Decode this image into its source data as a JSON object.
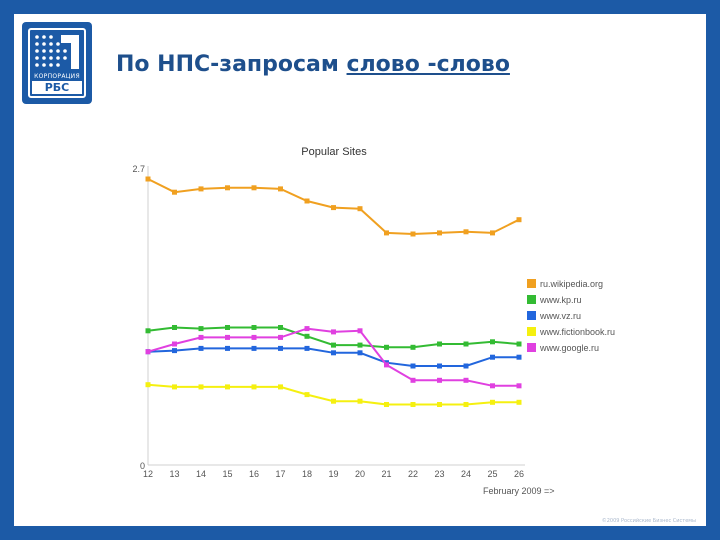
{
  "slide": {
    "title_prefix": "По НПС-запросам",
    "title_underlined": "слово -слово"
  },
  "logo": {
    "subtitle": "КОРПОРАЦИЯ",
    "brand": "РБС"
  },
  "footer": "©2009 Российские Бизнес Системы",
  "chart_data": {
    "type": "line",
    "title": "Popular Sites",
    "xlabel": "February 2009 =>",
    "ylabel": "",
    "ylim": [
      0,
      2.7
    ],
    "ytick_labels": [
      "0",
      "2.7"
    ],
    "x": [
      12,
      13,
      14,
      15,
      16,
      17,
      18,
      19,
      20,
      21,
      22,
      23,
      24,
      25,
      26
    ],
    "legend_position": "right",
    "series": [
      {
        "name": "ru.wikipedia.org",
        "color": "#f0a020",
        "values": [
          2.6,
          2.48,
          2.51,
          2.52,
          2.52,
          2.51,
          2.4,
          2.34,
          2.33,
          2.11,
          2.1,
          2.11,
          2.12,
          2.11,
          2.23
        ]
      },
      {
        "name": "www.kp.ru",
        "color": "#33bb33",
        "values": [
          1.22,
          1.25,
          1.24,
          1.25,
          1.25,
          1.25,
          1.17,
          1.09,
          1.09,
          1.07,
          1.07,
          1.1,
          1.1,
          1.12,
          1.1
        ]
      },
      {
        "name": "www.vz.ru",
        "color": "#2266dd",
        "values": [
          1.03,
          1.04,
          1.06,
          1.06,
          1.06,
          1.06,
          1.06,
          1.02,
          1.02,
          0.93,
          0.9,
          0.9,
          0.9,
          0.98,
          0.98
        ]
      },
      {
        "name": "www.fictionbook.ru",
        "color": "#f5f010",
        "values": [
          0.73,
          0.71,
          0.71,
          0.71,
          0.71,
          0.71,
          0.64,
          0.58,
          0.58,
          0.55,
          0.55,
          0.55,
          0.55,
          0.57,
          0.57
        ]
      },
      {
        "name": "www.google.ru",
        "color": "#e040e0",
        "values": [
          1.03,
          1.1,
          1.16,
          1.16,
          1.16,
          1.16,
          1.24,
          1.21,
          1.22,
          0.91,
          0.77,
          0.77,
          0.77,
          0.72,
          0.72
        ]
      }
    ]
  }
}
